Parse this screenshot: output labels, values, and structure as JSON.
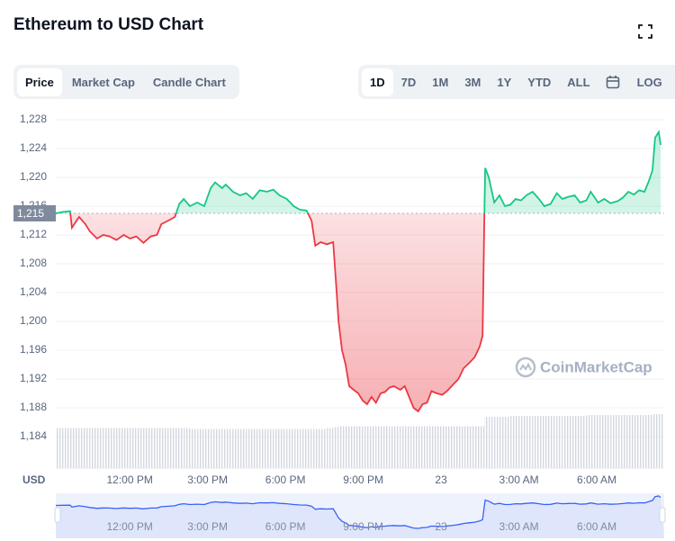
{
  "ui": {
    "tabs": [
      "Price",
      "Market Cap",
      "Candle Chart"
    ],
    "selected_tab": 0,
    "ranges": [
      "1D",
      "7D",
      "1M",
      "3M",
      "1Y",
      "YTD",
      "ALL"
    ],
    "selected_range": 0,
    "log_button": "LOG"
  },
  "chart_data": {
    "type": "line",
    "title": "Ethereum to USD Chart",
    "currency_label": "USD",
    "watermark": "CoinMarketCap",
    "x": [
      9.15,
      9.43,
      9.7,
      9.77,
      10.05,
      10.29,
      10.46,
      10.74,
      10.98,
      11.22,
      11.49,
      11.77,
      12.01,
      12.25,
      12.53,
      12.81,
      13.05,
      13.22,
      13.49,
      13.74,
      13.91,
      14.08,
      14.32,
      14.6,
      14.87,
      15.12,
      15.29,
      15.56,
      15.7,
      15.98,
      16.25,
      16.49,
      16.74,
      17.01,
      17.29,
      17.53,
      17.77,
      18.05,
      18.32,
      18.56,
      18.81,
      19.01,
      19.15,
      19.36,
      19.6,
      19.84,
      19.94,
      20.05,
      20.18,
      20.32,
      20.46,
      20.63,
      20.81,
      20.98,
      21.15,
      21.32,
      21.49,
      21.67,
      21.84,
      22.01,
      22.18,
      22.43,
      22.6,
      22.77,
      22.94,
      23.12,
      23.29,
      23.46,
      23.63,
      23.84,
      24.05,
      24.25,
      24.46,
      24.67,
      24.87,
      25.08,
      25.29,
      25.49,
      25.6,
      25.67,
      25.7,
      25.84,
      26.05,
      26.25,
      26.46,
      26.67,
      26.87,
      27.08,
      27.29,
      27.53,
      27.77,
      27.98,
      28.22,
      28.46,
      28.67,
      28.91,
      29.15,
      29.36,
      29.6,
      29.77,
      30.05,
      30.29,
      30.53,
      30.81,
      31.01,
      31.22,
      31.43,
      31.63,
      31.84,
      32.01,
      32.15,
      32.25,
      32.39,
      32.46
    ],
    "series": [
      {
        "values": [
          1215.0,
          1215.2,
          1215.3,
          1213.0,
          1214.5,
          1213.5,
          1212.5,
          1211.5,
          1212.0,
          1211.8,
          1211.3,
          1212.0,
          1211.5,
          1211.8,
          1210.9,
          1211.8,
          1212.0,
          1213.5,
          1214.0,
          1214.5,
          1216.3,
          1217.0,
          1216.0,
          1216.5,
          1216.0,
          1218.5,
          1219.3,
          1218.5,
          1219.0,
          1218.0,
          1217.5,
          1217.8,
          1217.0,
          1218.2,
          1218.0,
          1218.3,
          1217.5,
          1217.0,
          1216.0,
          1215.5,
          1215.4,
          1214.0,
          1210.5,
          1211.0,
          1210.7,
          1211.0,
          1206.0,
          1200.0,
          1196.0,
          1194.0,
          1191.0,
          1190.5,
          1190.0,
          1189.0,
          1188.5,
          1189.5,
          1188.7,
          1190.0,
          1190.2,
          1190.8,
          1191.0,
          1190.5,
          1191.0,
          1189.5,
          1188.0,
          1187.5,
          1188.5,
          1188.7,
          1190.3,
          1190.0,
          1189.8,
          1190.4,
          1191.2,
          1192.0,
          1193.5,
          1194.2,
          1195.0,
          1196.5,
          1198.0,
          1214.8,
          1221.3,
          1220.0,
          1216.5,
          1217.5,
          1216.0,
          1216.2,
          1217.0,
          1216.8,
          1217.5,
          1218.0,
          1217.0,
          1216.0,
          1216.3,
          1217.8,
          1217.0,
          1217.3,
          1217.5,
          1216.5,
          1216.8,
          1218.0,
          1216.5,
          1217.0,
          1216.4,
          1216.7,
          1217.2,
          1218.0,
          1217.6,
          1218.2,
          1218.0,
          1219.5,
          1221.0,
          1225.5,
          1226.3,
          1224.5
        ],
        "up_color": "#16c784",
        "down_color": "#ea3943"
      }
    ],
    "volume": {
      "color": "#d3d7de",
      "values": [
        43,
        43,
        43,
        43,
        43,
        43,
        43,
        43,
        43,
        43,
        43,
        43,
        43,
        43,
        43,
        43,
        43,
        43,
        43,
        43,
        43,
        43,
        42,
        42,
        42,
        42,
        42,
        42,
        42,
        42,
        42,
        42,
        42,
        42,
        42,
        42,
        42,
        42,
        42,
        42,
        42,
        42,
        42,
        42,
        43,
        44,
        44,
        45,
        45,
        45,
        45,
        45,
        45,
        45,
        45,
        45,
        45,
        45,
        45,
        45,
        45,
        45,
        45,
        45,
        45,
        45,
        45,
        45,
        45,
        45,
        45,
        45,
        45,
        45,
        45,
        45,
        45,
        45,
        45,
        55,
        55,
        55,
        55,
        55,
        55,
        56,
        56,
        56,
        56,
        56,
        56,
        56,
        56,
        56,
        56,
        56,
        56,
        56,
        57,
        57,
        57,
        57,
        57,
        57,
        57,
        57,
        57,
        57,
        57,
        57,
        58,
        58,
        58,
        58
      ]
    },
    "reference": {
      "value": 1215,
      "label": "1,215"
    },
    "xlim": [
      9.15,
      32.6
    ],
    "xticks": [
      {
        "value": 12,
        "label": "12:00 PM"
      },
      {
        "value": 15,
        "label": "3:00 PM"
      },
      {
        "value": 18,
        "label": "6:00 PM"
      },
      {
        "value": 21,
        "label": "9:00 PM"
      },
      {
        "value": 24,
        "label": "23"
      },
      {
        "value": 27,
        "label": "3:00 AM"
      },
      {
        "value": 30,
        "label": "6:00 AM"
      }
    ],
    "ylim": [
      1180,
      1229.5
    ],
    "yticks": [
      {
        "value": 1184,
        "label": "1,184"
      },
      {
        "value": 1188,
        "label": "1,188"
      },
      {
        "value": 1192,
        "label": "1,192"
      },
      {
        "value": 1196,
        "label": "1,196"
      },
      {
        "value": 1200,
        "label": "1,200"
      },
      {
        "value": 1204,
        "label": "1,204"
      },
      {
        "value": 1208,
        "label": "1,208"
      },
      {
        "value": 1212,
        "label": "1,212"
      },
      {
        "value": 1216,
        "label": "1,216"
      },
      {
        "value": 1220,
        "label": "1,220"
      },
      {
        "value": 1224,
        "label": "1,224"
      },
      {
        "value": 1228,
        "label": "1,228"
      }
    ],
    "grid": true,
    "navigator_color": "#3861fb"
  }
}
